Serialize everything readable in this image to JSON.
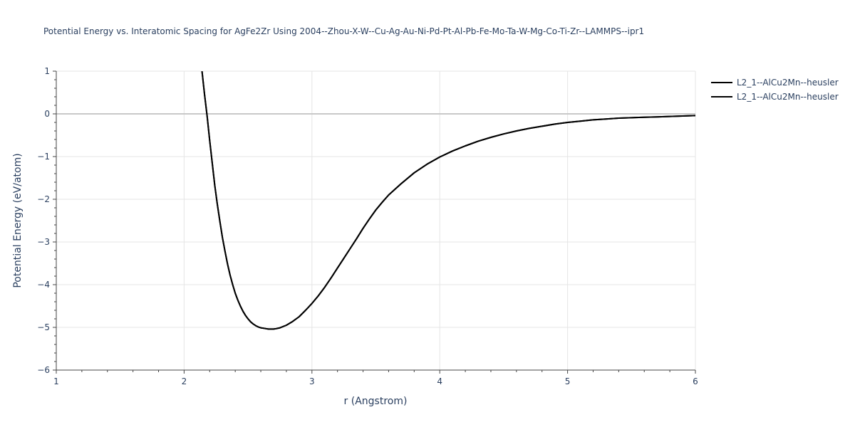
{
  "chart_data": {
    "type": "line",
    "title": "Potential Energy vs. Interatomic Spacing for AgFe2Zr Using 2004--Zhou-X-W--Cu-Ag-Au-Ni-Pd-Pt-Al-Pb-Fe-Mo-Ta-W-Mg-Co-Ti-Zr--LAMMPS--ipr1",
    "xlabel": "r (Angstrom)",
    "ylabel": "Potential Energy (eV/atom)",
    "xlim": [
      1,
      6
    ],
    "ylim": [
      -6,
      1
    ],
    "x_ticks": [
      1,
      2,
      3,
      4,
      5,
      6
    ],
    "y_ticks": [
      1,
      0,
      -1,
      -2,
      -3,
      -4,
      -5,
      -6
    ],
    "x_tick_labels": [
      "1",
      "2",
      "3",
      "4",
      "5",
      "6"
    ],
    "y_tick_labels": [
      "1",
      "0",
      "−1",
      "−2",
      "−3",
      "−4",
      "−5",
      "−6"
    ],
    "grid": true,
    "legend_position": "top-right",
    "series": [
      {
        "name": "L2_1--AlCu2Mn--heusler",
        "color": "#000000",
        "x": [
          2.14,
          2.16,
          2.18,
          2.2,
          2.22,
          2.24,
          2.26,
          2.28,
          2.3,
          2.32,
          2.34,
          2.36,
          2.38,
          2.4,
          2.42,
          2.44,
          2.46,
          2.48,
          2.5,
          2.52,
          2.54,
          2.56,
          2.58,
          2.6,
          2.62,
          2.64,
          2.66,
          2.68,
          2.7,
          2.72,
          2.75,
          2.8,
          2.85,
          2.9,
          2.95,
          3.0,
          3.05,
          3.1,
          3.15,
          3.2,
          3.25,
          3.3,
          3.35,
          3.4,
          3.45,
          3.5,
          3.55,
          3.6,
          3.7,
          3.8,
          3.9,
          4.0,
          4.1,
          4.2,
          4.3,
          4.4,
          4.5,
          4.6,
          4.7,
          4.8,
          4.9,
          5.0,
          5.1,
          5.2,
          5.3,
          5.4,
          5.5,
          5.6,
          5.7,
          5.8,
          5.9,
          6.0
        ],
        "y": [
          1.0,
          0.45,
          -0.05,
          -0.62,
          -1.15,
          -1.68,
          -2.12,
          -2.52,
          -2.9,
          -3.22,
          -3.52,
          -3.78,
          -4.0,
          -4.2,
          -4.36,
          -4.5,
          -4.62,
          -4.72,
          -4.8,
          -4.87,
          -4.92,
          -4.96,
          -4.99,
          -5.01,
          -5.02,
          -5.03,
          -5.04,
          -5.04,
          -5.04,
          -5.03,
          -5.01,
          -4.95,
          -4.86,
          -4.75,
          -4.6,
          -4.44,
          -4.26,
          -4.06,
          -3.84,
          -3.61,
          -3.38,
          -3.15,
          -2.92,
          -2.68,
          -2.46,
          -2.25,
          -2.07,
          -1.9,
          -1.63,
          -1.38,
          -1.18,
          -1.01,
          -0.87,
          -0.75,
          -0.64,
          -0.55,
          -0.47,
          -0.4,
          -0.34,
          -0.29,
          -0.24,
          -0.2,
          -0.17,
          -0.14,
          -0.12,
          -0.1,
          -0.09,
          -0.08,
          -0.07,
          -0.06,
          -0.05,
          -0.04
        ]
      },
      {
        "name": "L2_1--AlCu2Mn--heusler",
        "color": "#000000",
        "x": [
          2.14,
          2.16,
          2.18,
          2.2,
          2.22,
          2.24,
          2.26,
          2.28,
          2.3,
          2.32,
          2.34,
          2.36,
          2.38,
          2.4,
          2.42,
          2.44,
          2.46,
          2.48,
          2.5,
          2.52,
          2.54,
          2.56,
          2.58,
          2.6,
          2.62,
          2.64,
          2.66,
          2.68,
          2.7,
          2.72,
          2.75,
          2.8,
          2.85,
          2.9,
          2.95,
          3.0,
          3.05,
          3.1,
          3.15,
          3.2,
          3.25,
          3.3,
          3.35,
          3.4,
          3.45,
          3.5,
          3.55,
          3.6,
          3.7,
          3.8,
          3.9,
          4.0,
          4.1,
          4.2,
          4.3,
          4.4,
          4.5,
          4.6,
          4.7,
          4.8,
          4.9,
          5.0,
          5.1,
          5.2,
          5.3,
          5.4,
          5.5,
          5.6,
          5.7,
          5.8,
          5.9,
          6.0
        ],
        "y": [
          1.0,
          0.45,
          -0.05,
          -0.62,
          -1.15,
          -1.68,
          -2.12,
          -2.52,
          -2.9,
          -3.22,
          -3.52,
          -3.78,
          -4.0,
          -4.2,
          -4.36,
          -4.5,
          -4.62,
          -4.72,
          -4.8,
          -4.87,
          -4.92,
          -4.96,
          -4.99,
          -5.01,
          -5.02,
          -5.03,
          -5.04,
          -5.04,
          -5.04,
          -5.03,
          -5.01,
          -4.95,
          -4.86,
          -4.75,
          -4.6,
          -4.44,
          -4.26,
          -4.06,
          -3.84,
          -3.61,
          -3.38,
          -3.15,
          -2.92,
          -2.68,
          -2.46,
          -2.25,
          -2.07,
          -1.9,
          -1.63,
          -1.38,
          -1.18,
          -1.01,
          -0.87,
          -0.75,
          -0.64,
          -0.55,
          -0.47,
          -0.4,
          -0.34,
          -0.29,
          -0.24,
          -0.2,
          -0.17,
          -0.14,
          -0.12,
          -0.1,
          -0.09,
          -0.08,
          -0.07,
          -0.06,
          -0.05,
          -0.04
        ]
      }
    ]
  },
  "colors": {
    "grid": "#e5e5e5",
    "zero_line": "#c8c8c8",
    "axis": "#444444",
    "text": "#2a3f5f"
  }
}
